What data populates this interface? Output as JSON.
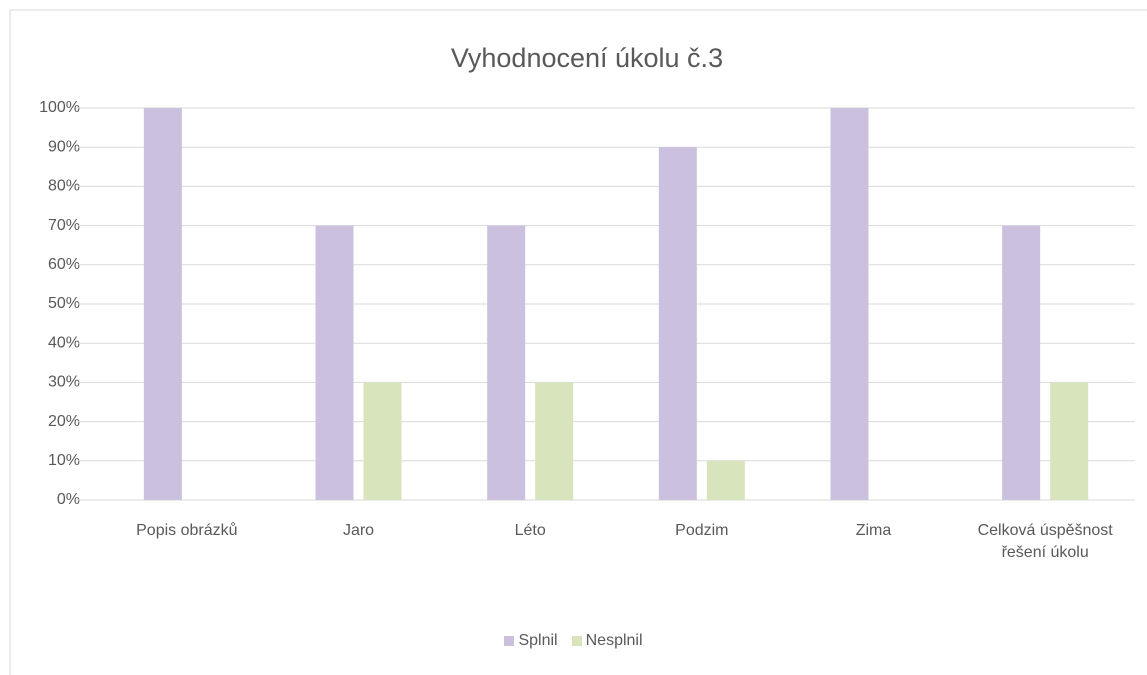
{
  "chart_data": {
    "type": "bar",
    "title": "Vyhodnocení úkolu č.3",
    "categories": [
      "Popis obrázků",
      "Jaro",
      "Léto",
      "Podzim",
      "Zima",
      "Celková úspěšnost řešení úkolu"
    ],
    "series": [
      {
        "name": "Splnil",
        "color": "#cbc0dd",
        "values": [
          100,
          70,
          70,
          90,
          100,
          70
        ]
      },
      {
        "name": "Nesplnil",
        "color": "#d8e4bc",
        "values": [
          0,
          30,
          30,
          10,
          0,
          30
        ]
      }
    ],
    "ylim": [
      0,
      100
    ],
    "yticks": [
      {
        "value": 0,
        "label": "0%"
      },
      {
        "value": 10,
        "label": "10%"
      },
      {
        "value": 20,
        "label": "20%"
      },
      {
        "value": 30,
        "label": "30%"
      },
      {
        "value": 40,
        "label": "40%"
      },
      {
        "value": 50,
        "label": "50%"
      },
      {
        "value": 60,
        "label": "60%"
      },
      {
        "value": 70,
        "label": "70%"
      },
      {
        "value": 80,
        "label": "80%"
      },
      {
        "value": 90,
        "label": "90%"
      },
      {
        "value": 100,
        "label": "100%"
      }
    ],
    "grid": true,
    "legend": "bottom"
  }
}
